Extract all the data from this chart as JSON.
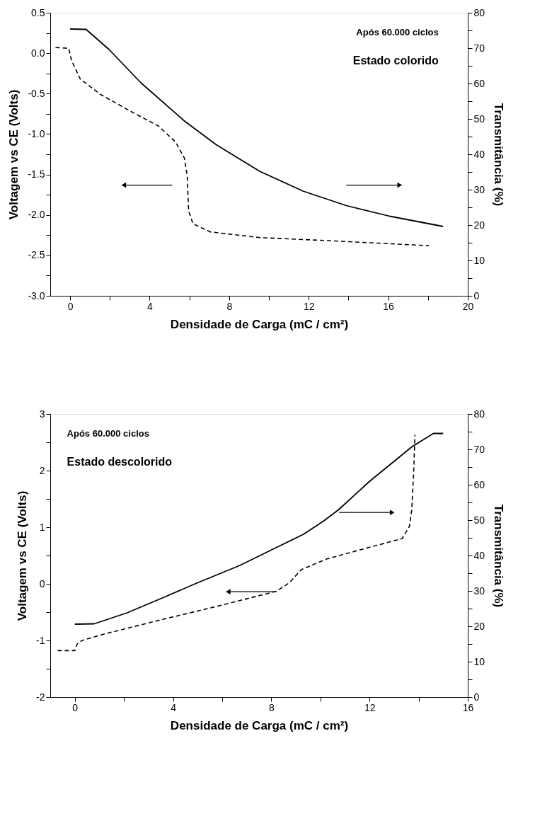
{
  "chart_data": [
    {
      "type": "line",
      "xlabel": "Densidade de Carga (mC / cm²)",
      "ylabel": "Voltagem vs CE (Volts)",
      "y2label": "Transmitância (%)",
      "annotations": [
        "Após 60.000 ciclos",
        "Estado colorido"
      ],
      "xlim": [
        -1,
        20
      ],
      "xticks": [
        0,
        {
          "value": 2,
          "label": null
        },
        4,
        {
          "value": 6,
          "label": null
        },
        8,
        {
          "value": 10,
          "label": null
        },
        12,
        {
          "value": 14,
          "label": null
        },
        16,
        {
          "value": 18,
          "label": null
        },
        20
      ],
      "ylim": [
        -3.0,
        0.5
      ],
      "yticks": [
        {
          "value": -3,
          "label": "-3.0"
        },
        {
          "value": -2.75,
          "label": null
        },
        -2.5,
        {
          "value": -2.25,
          "label": null
        },
        {
          "value": -2,
          "label": "-2.0"
        },
        {
          "value": -1.75,
          "label": null
        },
        -1.5,
        {
          "value": -1.25,
          "label": null
        },
        {
          "value": -1,
          "label": "-1.0"
        },
        {
          "value": -0.75,
          "label": null
        },
        -0.5,
        {
          "value": -0.25,
          "label": null
        },
        {
          "value": 0,
          "label": "0.0"
        },
        {
          "value": 0.25,
          "label": null
        },
        0.5
      ],
      "y2lim": [
        0,
        80
      ],
      "y2ticks": [
        0,
        {
          "value": 5,
          "label": null
        },
        10,
        {
          "value": 15,
          "label": null
        },
        20,
        {
          "value": 25,
          "label": null
        },
        30,
        {
          "value": 35,
          "label": null
        },
        40,
        {
          "value": 45,
          "label": null
        },
        50,
        {
          "value": 55,
          "label": null
        },
        60,
        {
          "value": 65,
          "label": null
        },
        70,
        {
          "value": 75,
          "label": null
        },
        80
      ],
      "grid": false,
      "series": [
        {
          "color": "#000000",
          "line_style": "dashed",
          "x": [
            -0.73,
            -0.07,
            0.07,
            0.51,
            1.53,
            2.98,
            4.44,
            5.31,
            5.75,
            5.89,
            5.96,
            6.18,
            7.05,
            9.53,
            13.16,
            18.04
          ],
          "values": [
            0.07,
            0.06,
            -0.09,
            -0.32,
            -0.51,
            -0.71,
            -0.9,
            -1.1,
            -1.3,
            -1.52,
            -1.95,
            -2.11,
            -2.21,
            -2.28,
            -2.32,
            -2.38
          ]
        },
        {
          "color": "#000000",
          "line_style": "solid",
          "axis": "y2",
          "x": [
            0,
            0.8,
            1.96,
            3.56,
            5.75,
            7.35,
            9.53,
            11.71,
            13.89,
            16.07,
            18.76
          ],
          "values": [
            75.4,
            75.3,
            69.6,
            60.2,
            49.4,
            42.7,
            35.2,
            29.6,
            25.5,
            22.5,
            19.6
          ]
        }
      ]
    },
    {
      "type": "line",
      "xlabel": "Densidade de Carga (mC / cm²)",
      "ylabel": "Voltagem vs CE (Volts)",
      "y2label": "Transmitância (%)",
      "annotations": [
        "Após 60.000 ciclos",
        "Estado descolorido"
      ],
      "xlim": [
        -1,
        16
      ],
      "xticks": [
        0,
        {
          "value": 2,
          "label": null
        },
        4,
        {
          "value": 6,
          "label": null
        },
        8,
        {
          "value": 10,
          "label": null
        },
        12,
        {
          "value": 14,
          "label": null
        },
        16
      ],
      "ylim": [
        -2,
        3
      ],
      "yticks": [
        -2,
        {
          "value": -1.5,
          "label": null
        },
        -1,
        {
          "value": -0.5,
          "label": null
        },
        0,
        {
          "value": 0.5,
          "label": null
        },
        1,
        {
          "value": 1.5,
          "label": null
        },
        2,
        {
          "value": 2.5,
          "label": null
        },
        3
      ],
      "y2lim": [
        0,
        80
      ],
      "y2ticks": [
        0,
        {
          "value": 5,
          "label": null
        },
        10,
        {
          "value": 15,
          "label": null
        },
        20,
        {
          "value": 25,
          "label": null
        },
        30,
        {
          "value": 35,
          "label": null
        },
        40,
        {
          "value": 45,
          "label": null
        },
        50,
        {
          "value": 55,
          "label": null
        },
        60,
        {
          "value": 65,
          "label": null
        },
        70,
        {
          "value": 75,
          "label": null
        },
        80
      ],
      "grid": false,
      "series": [
        {
          "color": "#000000",
          "line_style": "dashed",
          "x": [
            -0.7,
            0,
            0.1,
            0.3,
            1.17,
            3.56,
            5.96,
            8.21,
            8.74,
            9.22,
            10.27,
            11.7,
            13.33,
            13.62,
            13.72,
            13.8,
            13.85
          ],
          "values": [
            -1.18,
            -1.18,
            -1.06,
            -1.0,
            -0.89,
            -0.63,
            -0.38,
            -0.13,
            0.02,
            0.25,
            0.44,
            0.61,
            0.8,
            1.01,
            1.31,
            2.0,
            2.63
          ]
        },
        {
          "color": "#000000",
          "line_style": "solid",
          "axis": "y2",
          "x": [
            0,
            0.79,
            2.13,
            3.56,
            5.0,
            6.72,
            8.07,
            9.31,
            10.12,
            10.75,
            11.99,
            13.72,
            14.6,
            15.0
          ],
          "values": [
            20.6,
            20.7,
            23.8,
            28.0,
            32.3,
            37.2,
            41.8,
            46.0,
            49.7,
            53.0,
            60.9,
            70.7,
            74.5,
            74.5
          ]
        }
      ]
    }
  ]
}
